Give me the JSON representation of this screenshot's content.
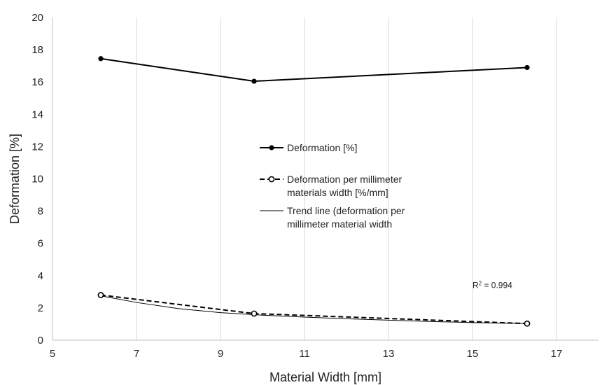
{
  "chart_data": {
    "type": "line",
    "title": "",
    "xlabel": "Material Width [mm]",
    "ylabel": "Deformation [%]",
    "xlim": [
      5,
      18
    ],
    "ylim": [
      0,
      20
    ],
    "xticks": [
      5,
      7,
      9,
      11,
      13,
      15,
      17
    ],
    "yticks": [
      0,
      2,
      4,
      6,
      8,
      10,
      12,
      14,
      16,
      18,
      20
    ],
    "grid": "vertical",
    "legend_position": "center",
    "series": [
      {
        "name": "Deformation [%]",
        "style": "solid-filled-markers",
        "color": "#000000",
        "x": [
          6.15,
          9.8,
          16.3
        ],
        "y": [
          17.45,
          16.05,
          16.9
        ]
      },
      {
        "name_lines": [
          "Deformation per millimeter",
          "materials width [%/mm]"
        ],
        "style": "dashed-open-markers",
        "color": "#000000",
        "x": [
          6.15,
          9.8,
          16.3
        ],
        "y": [
          2.8,
          1.65,
          1.03
        ]
      },
      {
        "name_lines": [
          "Trend line (deformation per",
          "millimeter material width"
        ],
        "style": "thin-trend",
        "color": "#000000",
        "x": [
          6.15,
          7,
          8,
          9,
          10,
          11,
          12,
          13,
          14,
          15,
          16.3
        ],
        "y": [
          2.75,
          2.34,
          1.96,
          1.71,
          1.55,
          1.43,
          1.33,
          1.24,
          1.16,
          1.09,
          1.03
        ]
      }
    ],
    "annotations": [
      {
        "text_main": "R",
        "text_sup": "2",
        "text_rest": " = 0.994",
        "x": 15.0,
        "y": 3.4
      }
    ]
  }
}
